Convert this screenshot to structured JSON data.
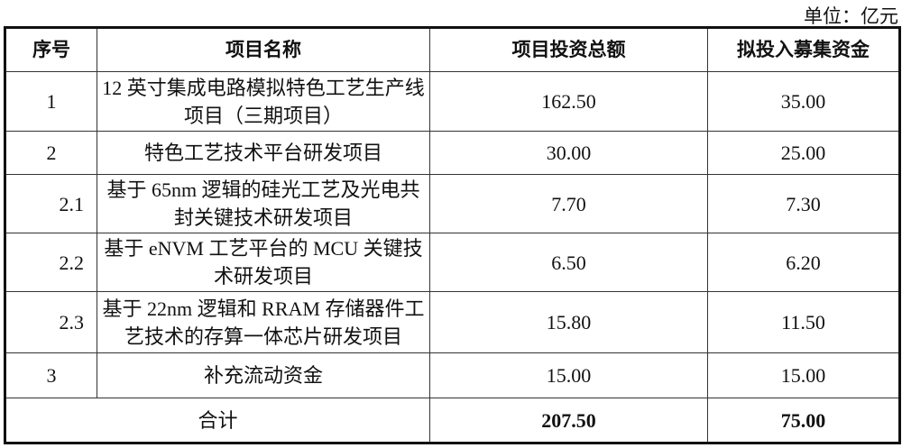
{
  "unit_label": "单位：亿元",
  "headers": [
    "序号",
    "项目名称",
    "项目投资总额",
    "拟投入募集资金"
  ],
  "rows": [
    {
      "no": "1",
      "name": "12 英寸集成电路模拟特色工艺生产线项目（三期项目）",
      "total": "162.50",
      "raised": "35.00",
      "sub": false
    },
    {
      "no": "2",
      "name": "特色工艺技术平台研发项目",
      "total": "30.00",
      "raised": "25.00",
      "sub": false
    },
    {
      "no": "2.1",
      "name": "基于 65nm 逻辑的硅光工艺及光电共封关键技术研发项目",
      "total": "7.70",
      "raised": "7.30",
      "sub": true
    },
    {
      "no": "2.2",
      "name": "基于 eNVM 工艺平台的 MCU 关键技术研发项目",
      "total": "6.50",
      "raised": "6.20",
      "sub": true
    },
    {
      "no": "2.3",
      "name": "基于 22nm 逻辑和 RRAM 存储器件工艺技术的存算一体芯片研发项目",
      "total": "15.80",
      "raised": "11.50",
      "sub": true
    },
    {
      "no": "3",
      "name": "补充流动资金",
      "total": "15.00",
      "raised": "15.00",
      "sub": false
    }
  ],
  "total_row": {
    "label": "合计",
    "total": "207.50",
    "raised": "75.00"
  }
}
